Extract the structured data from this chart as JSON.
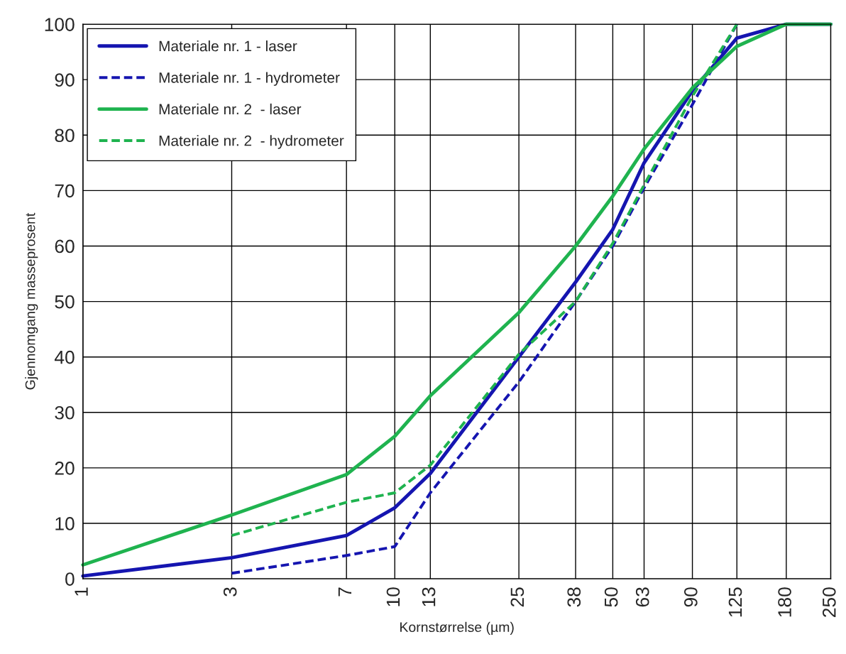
{
  "chart_data": {
    "type": "line",
    "xlabel": "Kornstørrelse (µm)",
    "ylabel": "Gjennomgang masseprosent",
    "log": "x",
    "xlim": [
      1,
      250
    ],
    "xticks": [
      1,
      3,
      7,
      10,
      13,
      25,
      38,
      50,
      63,
      90,
      125,
      180,
      250
    ],
    "ylim": [
      0,
      100
    ],
    "yticks": [
      0,
      10,
      20,
      30,
      40,
      50,
      60,
      70,
      80,
      90,
      100
    ],
    "grid": true,
    "legend": "top left",
    "series": [
      {
        "name": "Materiale nr. 1 - laser",
        "color": "#1515b0",
        "line_style": "solid",
        "x": [
          1,
          3,
          7,
          10,
          13,
          25,
          38,
          50,
          63,
          90,
          125,
          180,
          250
        ],
        "values": [
          0.5,
          3.8,
          7.8,
          12.8,
          19,
          40,
          53.5,
          63,
          75,
          88,
          97.5,
          100,
          100
        ]
      },
      {
        "name": "Materiale nr. 1 - hydrometer",
        "color": "#1515b0",
        "line_style": "dashed",
        "x": [
          3,
          7,
          10,
          13,
          25,
          38,
          50,
          63,
          90,
          125
        ],
        "values": [
          1,
          4.2,
          5.8,
          15.5,
          35.5,
          50,
          60,
          70.5,
          85.5,
          100
        ]
      },
      {
        "name": "Materiale nr. 2  - laser",
        "color": "#1fb34f",
        "line_style": "solid",
        "x": [
          1,
          3,
          7,
          10,
          13,
          25,
          38,
          50,
          63,
          90,
          125,
          180,
          250
        ],
        "values": [
          2.5,
          11.5,
          18.8,
          25.7,
          33,
          48,
          60,
          69,
          77.5,
          88.5,
          96,
          100,
          100
        ]
      },
      {
        "name": "Materiale nr. 2  - hydrometer",
        "color": "#1fb34f",
        "line_style": "dashed",
        "x": [
          3,
          7,
          10,
          13,
          25,
          38,
          50,
          63,
          90,
          125
        ],
        "values": [
          7.8,
          13.8,
          15.5,
          20.5,
          40.5,
          50,
          60.5,
          71,
          87,
          100
        ]
      }
    ]
  }
}
